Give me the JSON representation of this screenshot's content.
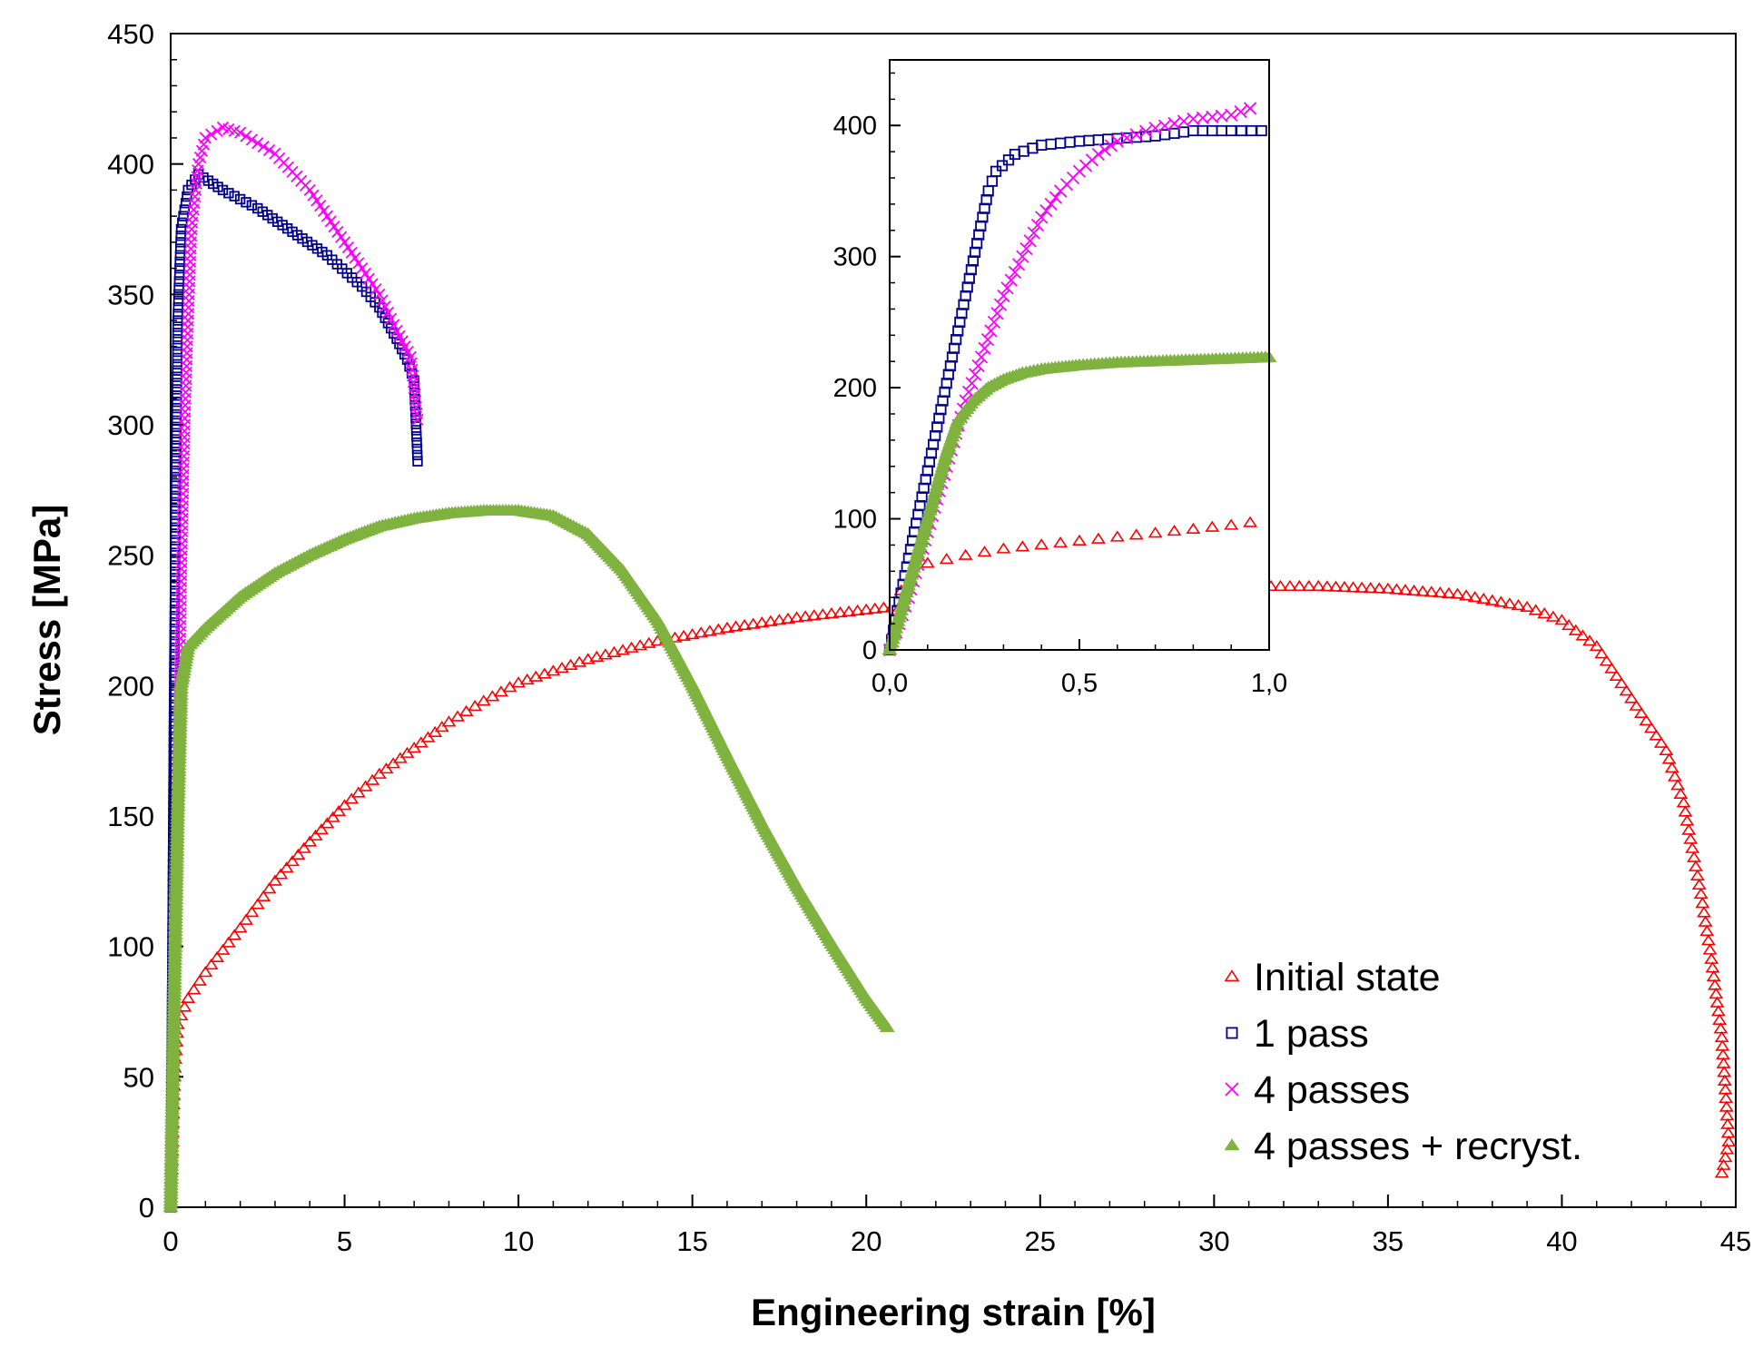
{
  "chart_data": [
    {
      "type": "scatter",
      "title": "",
      "xlabel": "Engineering strain  [%]",
      "ylabel": "Stress [MPa]",
      "xlim": [
        0,
        45
      ],
      "ylim": [
        0,
        450
      ],
      "xticks": [
        "0",
        "5",
        "10",
        "15",
        "20",
        "25",
        "30",
        "35",
        "40",
        "45"
      ],
      "yticks": [
        "0",
        "50",
        "100",
        "150",
        "200",
        "250",
        "300",
        "350",
        "400",
        "450"
      ],
      "grid": false,
      "legend_position": "bottom-right",
      "series": [
        {
          "name": "Initial state",
          "marker": "open-triangle",
          "color": "#ff0000",
          "points": [
            [
              0,
              0
            ],
            [
              0.1,
              50
            ],
            [
              0.2,
              70
            ],
            [
              0.5,
              80
            ],
            [
              1,
              90
            ],
            [
              2,
              107
            ],
            [
              3,
              125
            ],
            [
              4,
              140
            ],
            [
              5,
              154
            ],
            [
              6,
              166
            ],
            [
              7,
              176
            ],
            [
              8,
              186
            ],
            [
              9,
              194
            ],
            [
              10,
              201
            ],
            [
              12,
              210
            ],
            [
              14,
              217
            ],
            [
              16,
              222
            ],
            [
              18,
              226
            ],
            [
              20,
              229
            ],
            [
              22,
              232
            ],
            [
              25,
              235
            ],
            [
              28,
              237
            ],
            [
              30,
              238
            ],
            [
              33,
              238
            ],
            [
              35,
              237
            ],
            [
              37,
              235
            ],
            [
              39,
              230
            ],
            [
              40,
              225
            ],
            [
              41,
              215
            ],
            [
              42,
              195
            ],
            [
              43,
              175
            ],
            [
              43.5,
              155
            ],
            [
              44,
              120
            ],
            [
              44.3,
              95
            ],
            [
              44.6,
              65
            ],
            [
              44.7,
              45
            ],
            [
              44.8,
              25
            ],
            [
              44.6,
              13
            ]
          ]
        },
        {
          "name": "1 pass",
          "marker": "open-square",
          "color": "#00008b",
          "points": [
            [
              0,
              0
            ],
            [
              0.05,
              100
            ],
            [
              0.1,
              200
            ],
            [
              0.15,
              280
            ],
            [
              0.2,
              340
            ],
            [
              0.3,
              375
            ],
            [
              0.5,
              390
            ],
            [
              0.8,
              396
            ],
            [
              1.5,
              390
            ],
            [
              2.5,
              383
            ],
            [
              3.5,
              374
            ],
            [
              4.5,
              365
            ],
            [
              5.5,
              353
            ],
            [
              6,
              345
            ],
            [
              6.5,
              333
            ],
            [
              6.8,
              325
            ],
            [
              7,
              317
            ],
            [
              7.1,
              286
            ]
          ]
        },
        {
          "name": "4 passes",
          "marker": "x",
          "color": "#ff00ff",
          "points": [
            [
              0,
              0
            ],
            [
              0.1,
              60
            ],
            [
              0.2,
              150
            ],
            [
              0.3,
              240
            ],
            [
              0.4,
              300
            ],
            [
              0.5,
              340
            ],
            [
              0.6,
              375
            ],
            [
              0.8,
              400
            ],
            [
              1,
              410
            ],
            [
              1.5,
              414
            ],
            [
              2,
              412
            ],
            [
              3,
              404
            ],
            [
              4,
              390
            ],
            [
              5,
              370
            ],
            [
              6,
              350
            ],
            [
              6.5,
              336
            ],
            [
              6.9,
              326
            ],
            [
              7.1,
              302
            ]
          ]
        },
        {
          "name": "4 passes + recryst.",
          "marker": "filled-triangle",
          "color": "#7fb23e",
          "points": [
            [
              0,
              0
            ],
            [
              0.1,
              80
            ],
            [
              0.2,
              150
            ],
            [
              0.3,
              200
            ],
            [
              0.5,
              215
            ],
            [
              1,
              222
            ],
            [
              2,
              234
            ],
            [
              3,
              243
            ],
            [
              4,
              250
            ],
            [
              5,
              256
            ],
            [
              6,
              261
            ],
            [
              7,
              264
            ],
            [
              8,
              266
            ],
            [
              9,
              267
            ],
            [
              10,
              267
            ],
            [
              11,
              265
            ],
            [
              12,
              258
            ],
            [
              13,
              244
            ],
            [
              14,
              225
            ],
            [
              15,
              200
            ],
            [
              16,
              173
            ],
            [
              17,
              147
            ],
            [
              18,
              123
            ],
            [
              19,
              101
            ],
            [
              20,
              80
            ],
            [
              20.6,
              69
            ]
          ]
        }
      ]
    },
    {
      "type": "scatter",
      "title": "",
      "xlabel": "",
      "ylabel": "",
      "xlim": [
        0,
        1
      ],
      "ylim": [
        0,
        450
      ],
      "xticks": [
        "0,0",
        "0,5",
        "1,0"
      ],
      "yticks": [
        "0",
        "100",
        "200",
        "300",
        "400"
      ],
      "grid": false,
      "legend_position": "none",
      "series": [
        {
          "marker": "open-triangle",
          "color": "#ff0000",
          "points": [
            [
              0,
              0
            ],
            [
              0.03,
              45
            ],
            [
              0.06,
              60
            ],
            [
              0.1,
              66
            ],
            [
              0.2,
              72
            ],
            [
              0.3,
              77
            ],
            [
              0.4,
              80
            ],
            [
              0.5,
              83
            ],
            [
              0.6,
              86
            ],
            [
              0.7,
              89
            ],
            [
              0.8,
              92
            ],
            [
              0.9,
              95
            ],
            [
              0.95,
              97
            ]
          ]
        },
        {
          "marker": "open-square",
          "color": "#00008b",
          "points": [
            [
              0,
              0
            ],
            [
              0.02,
              30
            ],
            [
              0.05,
              70
            ],
            [
              0.08,
              110
            ],
            [
              0.11,
              150
            ],
            [
              0.14,
              190
            ],
            [
              0.17,
              230
            ],
            [
              0.2,
              270
            ],
            [
              0.23,
              310
            ],
            [
              0.26,
              350
            ],
            [
              0.28,
              365
            ],
            [
              0.33,
              378
            ],
            [
              0.4,
              385
            ],
            [
              0.5,
              388
            ],
            [
              0.6,
              390
            ],
            [
              0.7,
              392
            ],
            [
              0.8,
              396
            ],
            [
              0.9,
              396
            ],
            [
              0.98,
              396
            ]
          ]
        },
        {
          "marker": "x",
          "color": "#ff00ff",
          "points": [
            [
              0,
              0
            ],
            [
              0.05,
              40
            ],
            [
              0.1,
              90
            ],
            [
              0.15,
              140
            ],
            [
              0.2,
              190
            ],
            [
              0.25,
              230
            ],
            [
              0.3,
              270
            ],
            [
              0.35,
              300
            ],
            [
              0.4,
              330
            ],
            [
              0.45,
              350
            ],
            [
              0.5,
              365
            ],
            [
              0.55,
              378
            ],
            [
              0.6,
              388
            ],
            [
              0.7,
              398
            ],
            [
              0.8,
              405
            ],
            [
              0.9,
              408
            ],
            [
              0.95,
              413
            ]
          ]
        },
        {
          "marker": "filled-triangle",
          "color": "#7fb23e",
          "points": [
            [
              0,
              0
            ],
            [
              0.03,
              30
            ],
            [
              0.06,
              60
            ],
            [
              0.09,
              90
            ],
            [
              0.12,
              120
            ],
            [
              0.15,
              150
            ],
            [
              0.18,
              175
            ],
            [
              0.22,
              190
            ],
            [
              0.26,
              200
            ],
            [
              0.3,
              206
            ],
            [
              0.35,
              211
            ],
            [
              0.4,
              214
            ],
            [
              0.5,
              217
            ],
            [
              0.6,
              219
            ],
            [
              0.7,
              220
            ],
            [
              0.8,
              221
            ],
            [
              0.9,
              222
            ],
            [
              1.0,
              223
            ]
          ]
        }
      ]
    }
  ]
}
